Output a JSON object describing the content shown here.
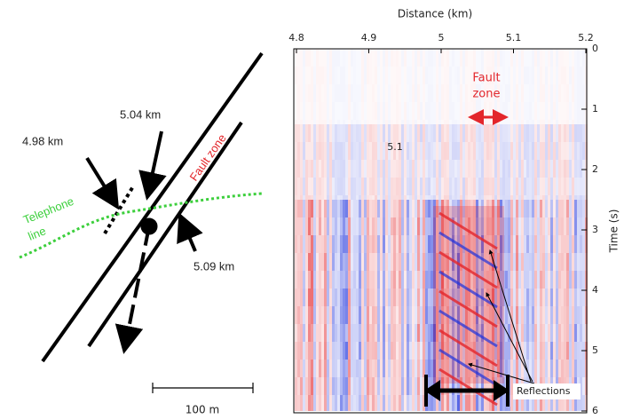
{
  "map": {
    "distance_labels": [
      "4.98 km",
      "5.04 km",
      "5.09 km"
    ],
    "fault_zone": "Fault zone",
    "telephone_line": [
      "Telephone",
      "line"
    ],
    "scale_bar": "100 m"
  },
  "section": {
    "x_label": "Distance (km)",
    "y_label": "Time (s)",
    "xlim": [
      4.8,
      5.2
    ],
    "xticks": [
      4.8,
      4.9,
      5,
      5.1,
      5.2
    ],
    "ylim": [
      0,
      6
    ],
    "yticks": [
      0,
      1,
      2,
      3,
      4,
      5,
      6
    ],
    "fault_zone": [
      "Fault",
      "zone"
    ],
    "velocity_label": "5.1",
    "reflections": "Reflections"
  }
}
